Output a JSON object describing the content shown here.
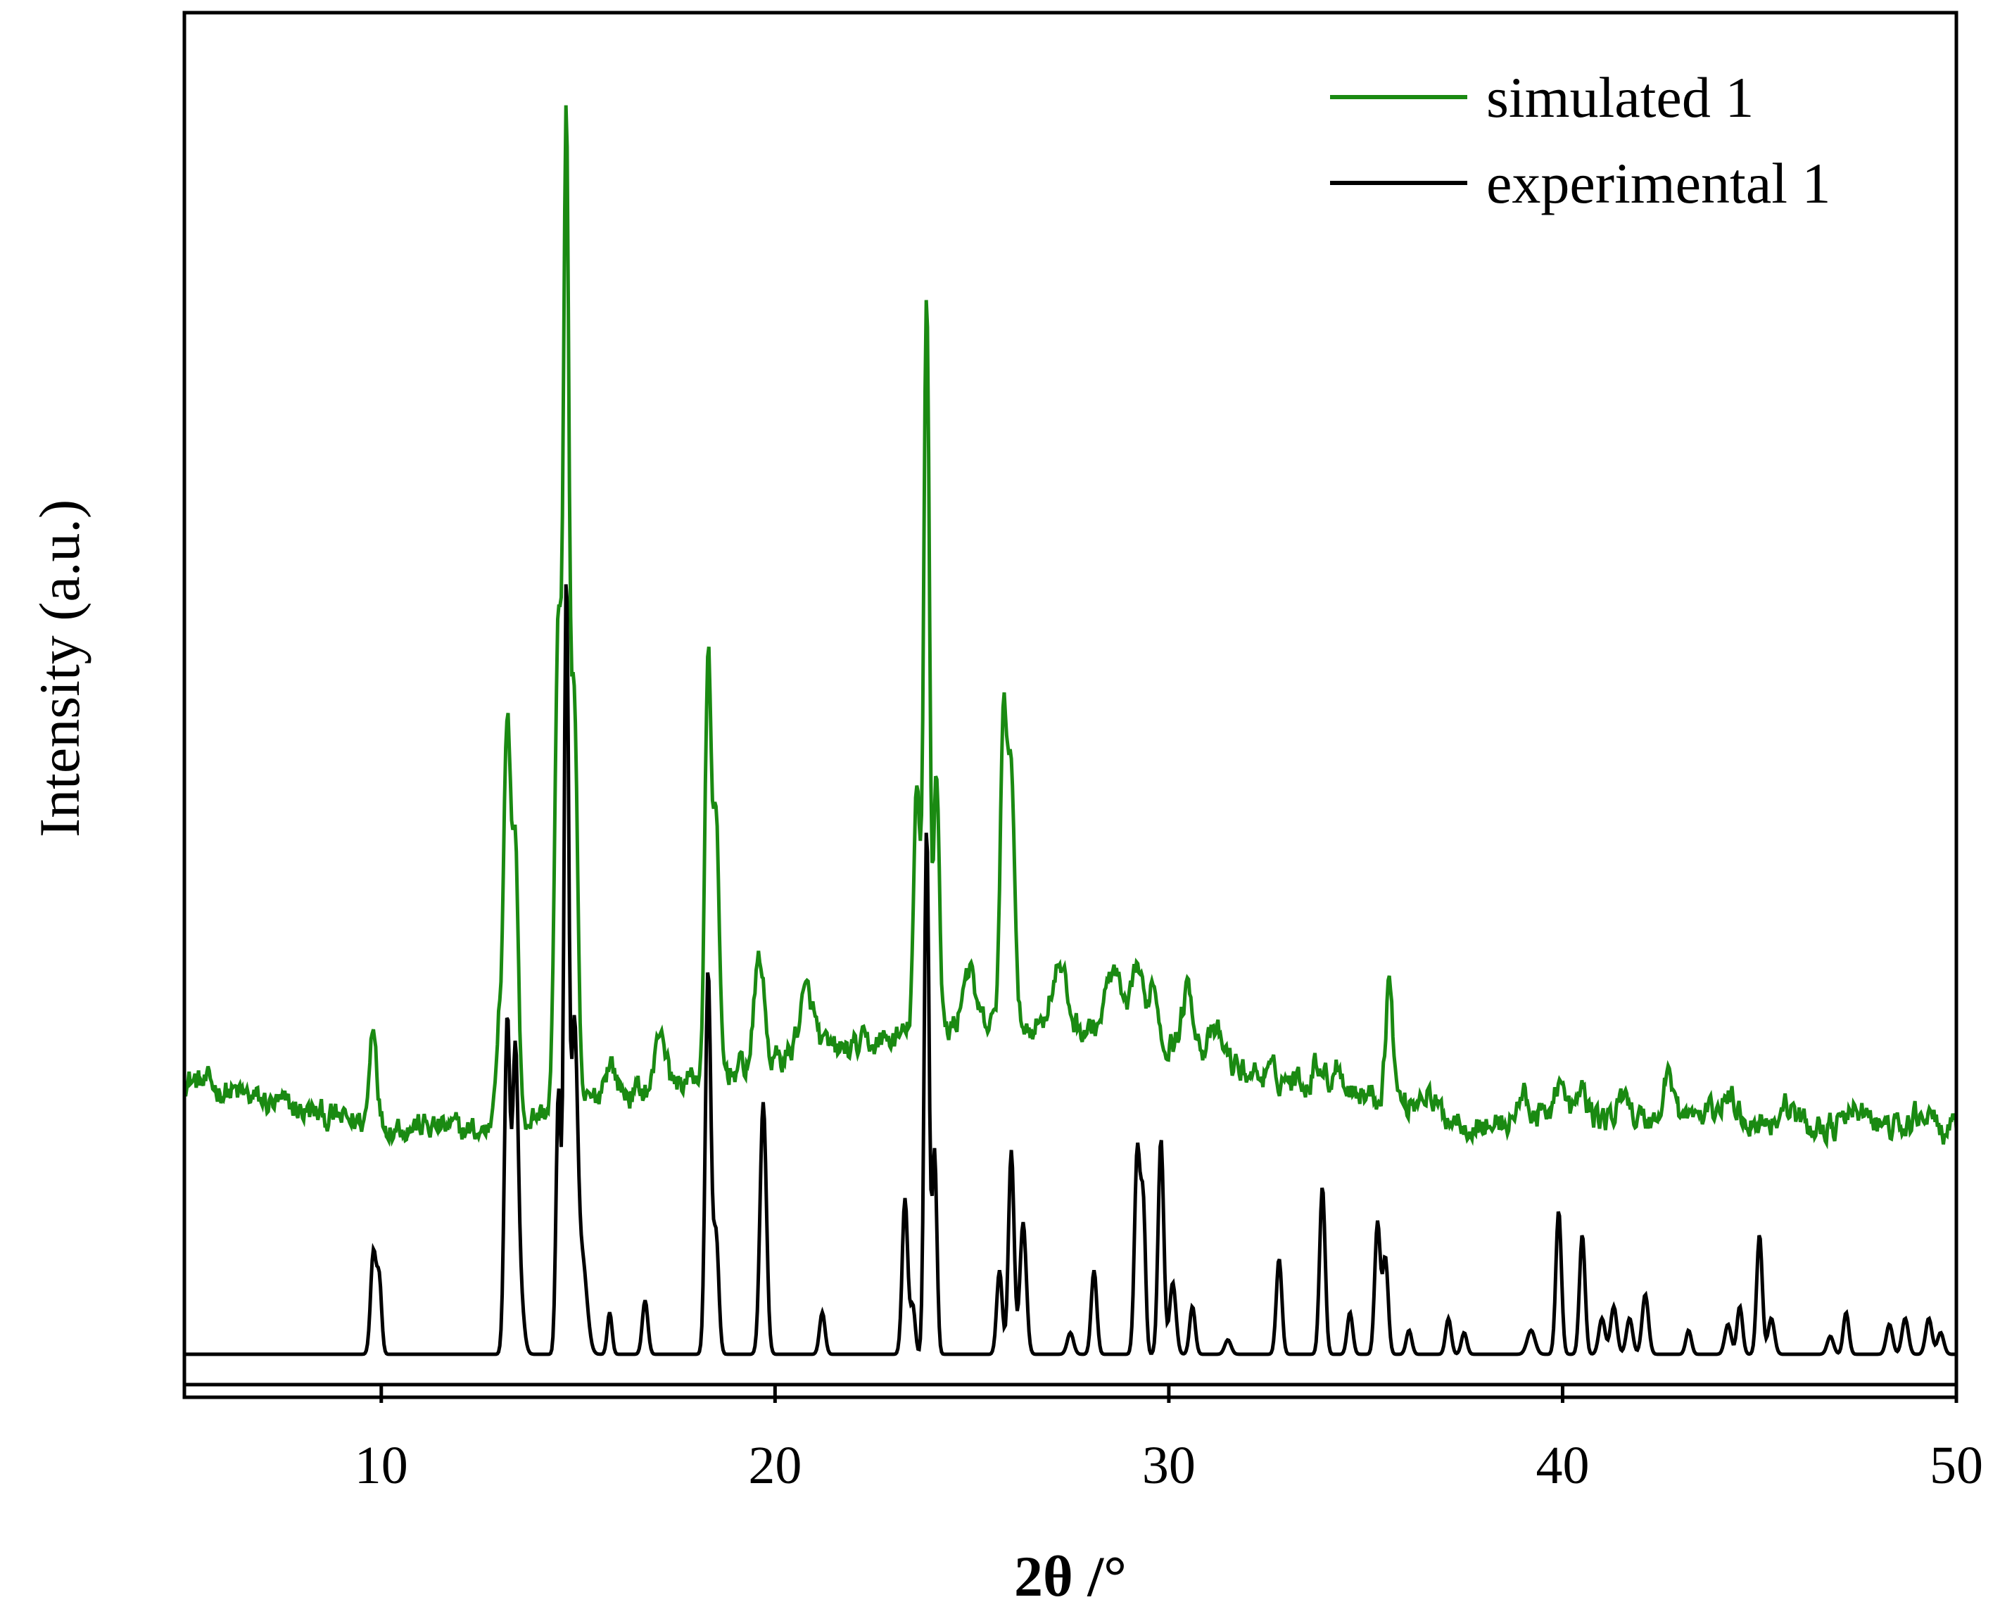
{
  "chart_data": {
    "type": "line",
    "title": "",
    "xlabel": "2θ /°",
    "ylabel": "Intensity (a.u.)",
    "xlim": [
      5,
      50
    ],
    "ylim": [
      0,
      100
    ],
    "xticks": [
      10,
      20,
      30,
      40,
      50
    ],
    "xtick_labels": [
      "10",
      "20",
      "30",
      "40",
      "50"
    ],
    "yticks_shown": false,
    "grid": false,
    "legend_position": "top-right",
    "series": [
      {
        "name": "simulated 1",
        "color": "#1a8a12",
        "baseline": [
          [
            5.0,
            24.0
          ],
          [
            7.0,
            22.0
          ],
          [
            9.0,
            20.5
          ],
          [
            11.0,
            20.0
          ],
          [
            12.5,
            19.5
          ],
          [
            14.0,
            21.0
          ],
          [
            16.0,
            22.5
          ],
          [
            18.0,
            24.0
          ],
          [
            20.0,
            25.5
          ],
          [
            22.0,
            26.5
          ],
          [
            24.0,
            28.0
          ],
          [
            26.0,
            28.5
          ],
          [
            28.0,
            28.0
          ],
          [
            30.0,
            27.0
          ],
          [
            32.0,
            24.5
          ],
          [
            34.0,
            23.5
          ],
          [
            36.0,
            22.0
          ],
          [
            38.0,
            20.0
          ],
          [
            40.0,
            21.0
          ],
          [
            42.0,
            20.5
          ],
          [
            44.0,
            21.0
          ],
          [
            46.0,
            20.0
          ],
          [
            48.0,
            20.0
          ],
          [
            50.0,
            19.5
          ]
        ],
        "peaks": [
          [
            9.8,
            8.5,
            0.09
          ],
          [
            13.0,
            9,
            0.1
          ],
          [
            13.2,
            32,
            0.08
          ],
          [
            13.4,
            24,
            0.08
          ],
          [
            14.5,
            40,
            0.09
          ],
          [
            14.7,
            78,
            0.07
          ],
          [
            14.9,
            34,
            0.08
          ],
          [
            15.8,
            3,
            0.15
          ],
          [
            17.1,
            5,
            0.12
          ],
          [
            18.3,
            34,
            0.08
          ],
          [
            18.5,
            20,
            0.08
          ],
          [
            19.6,
            9,
            0.12
          ],
          [
            20.8,
            5,
            0.2
          ],
          [
            23.6,
            20,
            0.08
          ],
          [
            23.85,
            62,
            0.07
          ],
          [
            24.1,
            22,
            0.07
          ],
          [
            24.9,
            5,
            0.15
          ],
          [
            25.8,
            26,
            0.08
          ],
          [
            26.0,
            22,
            0.08
          ],
          [
            27.2,
            5,
            0.2
          ],
          [
            28.6,
            5,
            0.2
          ],
          [
            29.2,
            6,
            0.12
          ],
          [
            29.6,
            5,
            0.12
          ],
          [
            30.5,
            5,
            0.15
          ],
          [
            31.2,
            2,
            0.2
          ],
          [
            33.8,
            2,
            0.12
          ],
          [
            34.3,
            2,
            0.12
          ],
          [
            35.6,
            10,
            0.09
          ],
          [
            36.5,
            1.5,
            0.15
          ],
          [
            39.0,
            2,
            0.15
          ],
          [
            39.9,
            3,
            0.12
          ],
          [
            40.5,
            2,
            0.12
          ],
          [
            41.6,
            2.5,
            0.12
          ],
          [
            42.7,
            4,
            0.12
          ],
          [
            44.2,
            1.5,
            0.2
          ],
          [
            45.7,
            1.5,
            0.2
          ],
          [
            47.5,
            1.5,
            0.2
          ],
          [
            49.2,
            1.5,
            0.2
          ]
        ],
        "noise_amplitude": 1.6
      },
      {
        "name": "experimental 1",
        "color": "#000000",
        "baseline": [
          [
            5.0,
            1.0
          ],
          [
            50.0,
            1.0
          ]
        ],
        "peaks": [
          [
            9.8,
            8.5,
            0.07
          ],
          [
            9.95,
            6,
            0.06
          ],
          [
            13.2,
            28,
            0.07
          ],
          [
            13.4,
            22,
            0.07
          ],
          [
            13.5,
            6,
            0.1
          ],
          [
            14.5,
            22,
            0.06
          ],
          [
            14.7,
            64,
            0.06
          ],
          [
            14.9,
            26,
            0.08
          ],
          [
            15.1,
            8,
            0.12
          ],
          [
            15.8,
            3.5,
            0.06
          ],
          [
            16.7,
            4.5,
            0.07
          ],
          [
            18.3,
            32,
            0.07
          ],
          [
            18.5,
            10,
            0.07
          ],
          [
            19.7,
            21,
            0.08
          ],
          [
            21.2,
            3.5,
            0.07
          ],
          [
            23.3,
            13,
            0.07
          ],
          [
            23.5,
            4,
            0.06
          ],
          [
            23.85,
            44,
            0.06
          ],
          [
            24.05,
            17,
            0.06
          ],
          [
            25.7,
            7,
            0.07
          ],
          [
            26.0,
            17,
            0.07
          ],
          [
            26.3,
            11,
            0.08
          ],
          [
            27.5,
            1.8,
            0.08
          ],
          [
            28.1,
            7,
            0.07
          ],
          [
            29.2,
            17,
            0.07
          ],
          [
            29.35,
            12,
            0.06
          ],
          [
            29.8,
            18,
            0.07
          ],
          [
            30.1,
            6,
            0.08
          ],
          [
            30.6,
            4,
            0.07
          ],
          [
            31.5,
            1.2,
            0.08
          ],
          [
            32.8,
            8,
            0.07
          ],
          [
            33.9,
            14,
            0.07
          ],
          [
            34.6,
            3.5,
            0.07
          ],
          [
            35.3,
            11,
            0.07
          ],
          [
            35.5,
            8,
            0.07
          ],
          [
            36.1,
            2,
            0.07
          ],
          [
            37.1,
            3,
            0.07
          ],
          [
            37.5,
            1.8,
            0.07
          ],
          [
            39.2,
            2,
            0.1
          ],
          [
            39.9,
            12,
            0.07
          ],
          [
            40.5,
            10,
            0.07
          ],
          [
            41.0,
            3,
            0.08
          ],
          [
            41.3,
            4,
            0.08
          ],
          [
            41.7,
            3,
            0.08
          ],
          [
            42.1,
            5,
            0.08
          ],
          [
            43.2,
            2,
            0.07
          ],
          [
            44.2,
            2.5,
            0.08
          ],
          [
            44.5,
            4,
            0.07
          ],
          [
            45.0,
            10,
            0.07
          ],
          [
            45.3,
            3,
            0.08
          ],
          [
            46.8,
            1.5,
            0.08
          ],
          [
            47.2,
            3.5,
            0.07
          ],
          [
            48.3,
            2.5,
            0.08
          ],
          [
            48.7,
            3,
            0.08
          ],
          [
            49.3,
            3,
            0.08
          ],
          [
            49.6,
            1.8,
            0.08
          ]
        ],
        "noise_amplitude": 0
      }
    ]
  }
}
